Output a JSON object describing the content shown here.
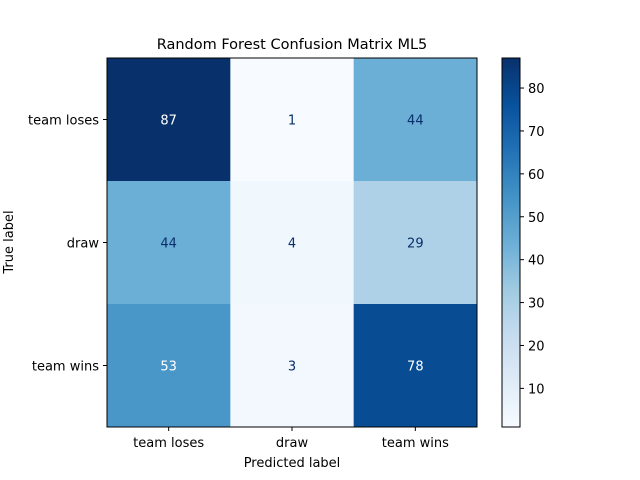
{
  "chart_data": {
    "type": "heatmap",
    "title": "Random Forest Confusion Matrix ML5",
    "xlabel": "Predicted label",
    "ylabel": "True label",
    "x_categories": [
      "team loses",
      "draw",
      "team wins"
    ],
    "y_categories": [
      "team loses",
      "draw",
      "team wins"
    ],
    "values": [
      [
        87,
        1,
        44
      ],
      [
        44,
        4,
        29
      ],
      [
        53,
        3,
        78
      ]
    ],
    "colormap": "Blues",
    "colorbar": {
      "range": [
        1,
        87
      ],
      "ticks": [
        "10",
        "20",
        "30",
        "40",
        "50",
        "60",
        "70",
        "80"
      ]
    }
  }
}
